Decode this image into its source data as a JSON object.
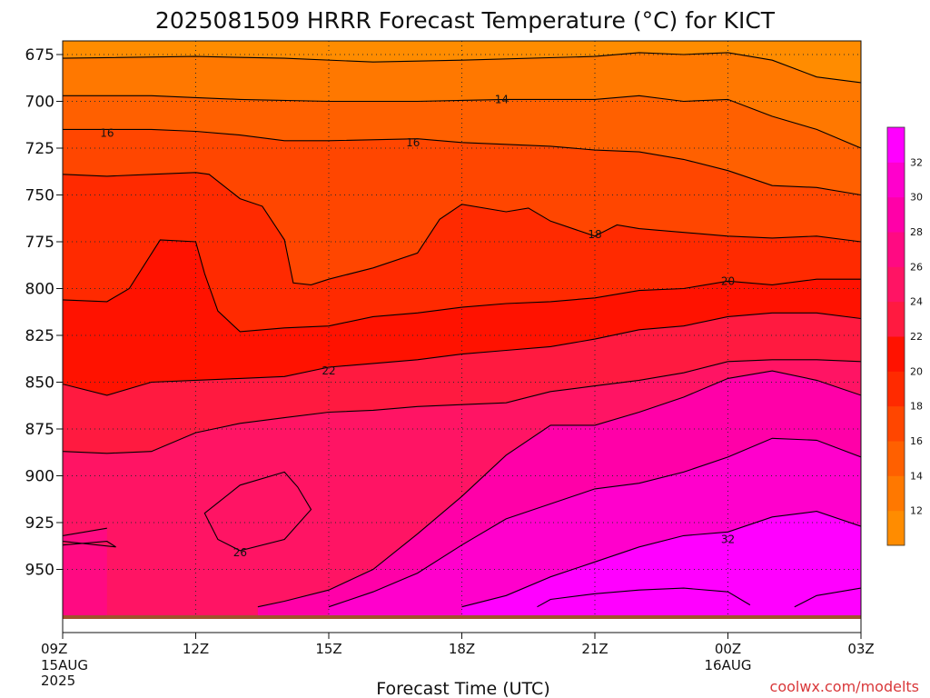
{
  "title": "2025081509 HRRR Forecast Temperature (°C) for KICT",
  "credit": "coolwx.com/modelts",
  "xlabel": "Forecast Time (UTC)",
  "colors": {
    "contour_line": "#000000",
    "ground": "#a0522d",
    "grid": "#333333"
  },
  "chart_data": {
    "type": "heatmap",
    "title": "2025081509 HRRR Forecast Temperature (°C) for KICT",
    "xlabel": "Forecast Time (UTC)",
    "ylabel": "",
    "y_scale": "pressure (hPa), inverted",
    "xlim_hours": [
      9,
      27
    ],
    "ylim": [
      970,
      670
    ],
    "grid": true,
    "x_ticks": [
      {
        "hour": 9,
        "label": "09Z",
        "sub": [
          "15AUG",
          "2025"
        ]
      },
      {
        "hour": 12,
        "label": "12Z",
        "sub": []
      },
      {
        "hour": 15,
        "label": "15Z",
        "sub": []
      },
      {
        "hour": 18,
        "label": "18Z",
        "sub": []
      },
      {
        "hour": 21,
        "label": "21Z",
        "sub": []
      },
      {
        "hour": 24,
        "label": "00Z",
        "sub": [
          "16AUG"
        ]
      },
      {
        "hour": 27,
        "label": "03Z",
        "sub": []
      }
    ],
    "y_ticks": [
      675,
      700,
      725,
      750,
      775,
      800,
      825,
      850,
      875,
      900,
      925,
      950
    ],
    "colorbar": {
      "bands": [
        {
          "from": 10,
          "to": 12,
          "color": "#ff8c00"
        },
        {
          "from": 12,
          "to": 14,
          "color": "#ff7800"
        },
        {
          "from": 14,
          "to": 16,
          "color": "#ff6000"
        },
        {
          "from": 16,
          "to": 18,
          "color": "#ff4600"
        },
        {
          "from": 18,
          "to": 20,
          "color": "#ff2a00"
        },
        {
          "from": 20,
          "to": 22,
          "color": "#ff1200"
        },
        {
          "from": 22,
          "to": 24,
          "color": "#ff1a40"
        },
        {
          "from": 24,
          "to": 26,
          "color": "#ff1464"
        },
        {
          "from": 26,
          "to": 28,
          "color": "#ff0a82"
        },
        {
          "from": 28,
          "to": 30,
          "color": "#ff00a8"
        },
        {
          "from": 30,
          "to": 32,
          "color": "#ff00cc"
        },
        {
          "from": 32,
          "to": 34,
          "color": "#ff00ff"
        }
      ],
      "tick_labels": [
        "12",
        "14",
        "16",
        "18",
        "20",
        "22",
        "24",
        "26",
        "28",
        "30",
        "32"
      ]
    },
    "contour_labels": [
      {
        "text": "14",
        "hour": 18.9,
        "p": 699
      },
      {
        "text": "16",
        "hour": 10.0,
        "p": 717
      },
      {
        "text": "16",
        "hour": 16.9,
        "p": 722
      },
      {
        "text": "18",
        "hour": 21.0,
        "p": 771
      },
      {
        "text": "20",
        "hour": 24.0,
        "p": 796
      },
      {
        "text": "22",
        "hour": 15.0,
        "p": 844
      },
      {
        "text": "26",
        "hour": 13.0,
        "p": 941
      },
      {
        "text": "32",
        "hour": 24.0,
        "p": 934
      }
    ],
    "isotherms": [
      {
        "t": 12,
        "pts": [
          [
            9,
            677
          ],
          [
            12,
            676
          ],
          [
            14,
            677
          ],
          [
            16,
            679
          ],
          [
            18,
            678
          ],
          [
            21,
            676
          ],
          [
            22,
            674
          ],
          [
            23,
            675
          ],
          [
            24,
            674
          ],
          [
            25,
            678
          ],
          [
            26,
            687
          ],
          [
            27,
            690
          ]
        ]
      },
      {
        "t": 14,
        "pts": [
          [
            9,
            697
          ],
          [
            10,
            697
          ],
          [
            11,
            697
          ],
          [
            12,
            698
          ],
          [
            13,
            699
          ],
          [
            15,
            700
          ],
          [
            17,
            700
          ],
          [
            19,
            699
          ],
          [
            21,
            699
          ],
          [
            22,
            697
          ],
          [
            23,
            700
          ],
          [
            24,
            699
          ],
          [
            25,
            708
          ],
          [
            26,
            715
          ],
          [
            27,
            725
          ]
        ]
      },
      {
        "t": 16,
        "pts": [
          [
            9,
            715
          ],
          [
            10,
            715
          ],
          [
            11,
            715
          ],
          [
            12,
            716
          ],
          [
            13,
            718
          ],
          [
            14,
            721
          ],
          [
            15,
            721
          ],
          [
            17,
            720
          ],
          [
            18,
            722
          ],
          [
            20,
            724
          ],
          [
            21,
            726
          ],
          [
            22,
            727
          ],
          [
            23,
            731
          ],
          [
            24,
            737
          ],
          [
            25,
            745
          ],
          [
            26,
            746
          ],
          [
            27,
            750
          ]
        ]
      },
      {
        "t": 18,
        "pts": [
          [
            9,
            739
          ],
          [
            10,
            740
          ],
          [
            11,
            739
          ],
          [
            12,
            738
          ],
          [
            12.3,
            739
          ],
          [
            13,
            752
          ],
          [
            13.5,
            756
          ],
          [
            14,
            774
          ],
          [
            14.2,
            797
          ],
          [
            14.6,
            798
          ],
          [
            15,
            795
          ],
          [
            16,
            789
          ],
          [
            17,
            781
          ],
          [
            17.5,
            763
          ],
          [
            18,
            755
          ],
          [
            19,
            759
          ],
          [
            19.5,
            757
          ],
          [
            20,
            764
          ],
          [
            21,
            772
          ],
          [
            21.5,
            766
          ],
          [
            22,
            768
          ],
          [
            23,
            770
          ],
          [
            24,
            772
          ],
          [
            25,
            773
          ],
          [
            26,
            772
          ],
          [
            27,
            775
          ]
        ]
      },
      {
        "t": 20,
        "pts": [
          [
            9,
            806
          ],
          [
            10,
            807
          ],
          [
            10.5,
            800
          ],
          [
            11.2,
            774
          ],
          [
            12,
            775
          ],
          [
            12.2,
            792
          ],
          [
            12.5,
            812
          ],
          [
            13,
            823
          ],
          [
            14,
            821
          ],
          [
            15,
            820
          ],
          [
            16,
            815
          ],
          [
            17,
            813
          ],
          [
            18,
            810
          ],
          [
            19,
            808
          ],
          [
            20,
            807
          ],
          [
            21,
            805
          ],
          [
            22,
            801
          ],
          [
            23,
            800
          ],
          [
            24,
            796
          ],
          [
            25,
            798
          ],
          [
            26,
            795
          ],
          [
            27,
            795
          ]
        ]
      },
      {
        "t": 22,
        "pts": [
          [
            9,
            851
          ],
          [
            10,
            857
          ],
          [
            11,
            850
          ],
          [
            12,
            849
          ],
          [
            13,
            848
          ],
          [
            14,
            847
          ],
          [
            15,
            842
          ],
          [
            16,
            840
          ],
          [
            17,
            838
          ],
          [
            18,
            835
          ],
          [
            19,
            833
          ],
          [
            20,
            831
          ],
          [
            21,
            827
          ],
          [
            22,
            822
          ],
          [
            23,
            820
          ],
          [
            24,
            815
          ],
          [
            25,
            813
          ],
          [
            26,
            813
          ],
          [
            27,
            816
          ]
        ]
      },
      {
        "t": 24,
        "pts": [
          [
            9,
            887
          ],
          [
            10,
            888
          ],
          [
            11,
            887
          ],
          [
            12,
            877
          ],
          [
            13,
            872
          ],
          [
            14,
            869
          ],
          [
            15,
            866
          ],
          [
            16,
            865
          ],
          [
            17,
            863
          ],
          [
            18,
            862
          ],
          [
            19,
            861
          ],
          [
            20,
            855
          ],
          [
            21,
            852
          ],
          [
            22,
            849
          ],
          [
            23,
            845
          ],
          [
            24,
            839
          ],
          [
            25,
            838
          ],
          [
            26,
            838
          ],
          [
            27,
            839
          ]
        ]
      },
      {
        "t": 26,
        "pts": [
          [
            9,
            937
          ],
          [
            10,
            935
          ],
          [
            10.2,
            938
          ],
          [
            9,
            935
          ]
        ]
      },
      {
        "t": 26.5,
        "pts": [
          [
            9,
            932
          ],
          [
            10,
            928
          ]
        ]
      },
      {
        "t": 26,
        "pts": [
          [
            12.2,
            920
          ],
          [
            13,
            905
          ],
          [
            14,
            898
          ],
          [
            14.3,
            906
          ],
          [
            14.6,
            918
          ],
          [
            14,
            934
          ],
          [
            13,
            940
          ],
          [
            12.5,
            934
          ],
          [
            12.2,
            920
          ]
        ]
      },
      {
        "t": 28,
        "pts": [
          [
            13.4,
            970
          ],
          [
            14,
            967
          ],
          [
            15,
            961
          ],
          [
            16,
            950
          ],
          [
            17,
            931
          ],
          [
            18,
            911
          ],
          [
            19,
            889
          ],
          [
            20,
            873
          ],
          [
            21,
            873
          ],
          [
            22,
            866
          ],
          [
            23,
            858
          ],
          [
            24,
            848
          ],
          [
            25,
            844
          ],
          [
            26,
            849
          ],
          [
            27,
            857
          ]
        ]
      },
      {
        "t": 30,
        "pts": [
          [
            15,
            970
          ],
          [
            16,
            962
          ],
          [
            17,
            952
          ],
          [
            18,
            937
          ],
          [
            19,
            923
          ],
          [
            20,
            915
          ],
          [
            21,
            907
          ],
          [
            22,
            904
          ],
          [
            23,
            898
          ],
          [
            24,
            890
          ],
          [
            25,
            880
          ],
          [
            26,
            881
          ],
          [
            27,
            890
          ]
        ]
      },
      {
        "t": 32,
        "pts": [
          [
            18,
            970
          ],
          [
            19,
            964
          ],
          [
            20,
            954
          ],
          [
            21,
            946
          ],
          [
            22,
            938
          ],
          [
            23,
            932
          ],
          [
            24,
            930
          ],
          [
            25,
            922
          ],
          [
            26,
            919
          ],
          [
            27,
            927
          ]
        ]
      },
      {
        "t": 34,
        "pts": [
          [
            19.7,
            970
          ],
          [
            20,
            966
          ],
          [
            21,
            963
          ],
          [
            22,
            961
          ],
          [
            23,
            960
          ],
          [
            24,
            962
          ],
          [
            24.5,
            969
          ]
        ]
      },
      {
        "t": 34,
        "pts": [
          [
            25.5,
            970
          ],
          [
            26,
            964
          ],
          [
            27,
            960
          ]
        ]
      }
    ]
  }
}
